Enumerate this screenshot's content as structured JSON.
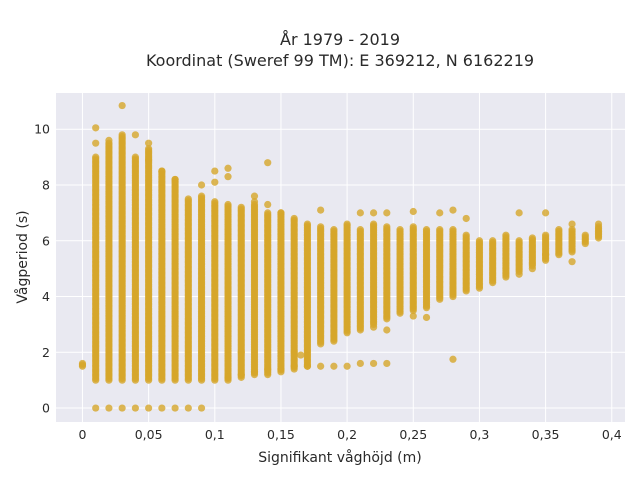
{
  "chart_data": {
    "type": "scatter",
    "title_lines": [
      "År 1979 - 2019",
      "Koordinat (Sweref 99 TM): E 369212, N 6162219"
    ],
    "xlabel": "Signifikant våghöjd (m)",
    "ylabel": "Vågperiod (s)",
    "xlim": [
      -0.02,
      0.41
    ],
    "ylim": [
      -0.5,
      11.3
    ],
    "x_ticks": [
      0,
      0.05,
      0.1,
      0.15,
      0.2,
      0.25,
      0.3,
      0.35,
      0.4
    ],
    "x_tick_labels": [
      "0",
      "0,05",
      "0,1",
      "0,15",
      "0,2",
      "0,25",
      "0,3",
      "0,35",
      "0,4"
    ],
    "y_ticks": [
      0,
      2,
      4,
      6,
      8,
      10
    ],
    "y_tick_labels": [
      "0",
      "2",
      "4",
      "6",
      "8",
      "10"
    ],
    "grid": true,
    "legend": "none",
    "colors": {
      "marker": "#d6a62a",
      "plot_background": "#e9e9f1",
      "grid": "#ffffff"
    },
    "columns": [
      {
        "x": 0.0,
        "y_min": 1.5,
        "y_max": 1.6
      },
      {
        "x": 0.01,
        "y_min": 1.0,
        "y_max": 9.0
      },
      {
        "x": 0.02,
        "y_min": 1.0,
        "y_max": 9.5
      },
      {
        "x": 0.03,
        "y_min": 1.0,
        "y_max": 9.8
      },
      {
        "x": 0.04,
        "y_min": 1.0,
        "y_max": 9.0
      },
      {
        "x": 0.05,
        "y_min": 1.0,
        "y_max": 9.3
      },
      {
        "x": 0.06,
        "y_min": 1.0,
        "y_max": 8.5
      },
      {
        "x": 0.07,
        "y_min": 1.0,
        "y_max": 8.2
      },
      {
        "x": 0.08,
        "y_min": 1.0,
        "y_max": 7.5
      },
      {
        "x": 0.09,
        "y_min": 1.0,
        "y_max": 7.6
      },
      {
        "x": 0.1,
        "y_min": 1.0,
        "y_max": 7.4
      },
      {
        "x": 0.11,
        "y_min": 1.0,
        "y_max": 7.3
      },
      {
        "x": 0.12,
        "y_min": 1.1,
        "y_max": 7.2
      },
      {
        "x": 0.13,
        "y_min": 1.2,
        "y_max": 7.3
      },
      {
        "x": 0.14,
        "y_min": 1.2,
        "y_max": 7.0
      },
      {
        "x": 0.15,
        "y_min": 1.3,
        "y_max": 7.0
      },
      {
        "x": 0.16,
        "y_min": 1.4,
        "y_max": 6.8
      },
      {
        "x": 0.17,
        "y_min": 1.5,
        "y_max": 6.6
      },
      {
        "x": 0.18,
        "y_min": 2.3,
        "y_max": 6.5
      },
      {
        "x": 0.19,
        "y_min": 2.4,
        "y_max": 6.4
      },
      {
        "x": 0.2,
        "y_min": 2.7,
        "y_max": 6.6
      },
      {
        "x": 0.21,
        "y_min": 2.8,
        "y_max": 6.4
      },
      {
        "x": 0.22,
        "y_min": 3.0,
        "y_max": 6.6
      },
      {
        "x": 0.23,
        "y_min": 3.2,
        "y_max": 6.5
      },
      {
        "x": 0.24,
        "y_min": 3.4,
        "y_max": 6.4
      },
      {
        "x": 0.25,
        "y_min": 3.5,
        "y_max": 6.5
      },
      {
        "x": 0.26,
        "y_min": 3.6,
        "y_max": 6.4
      },
      {
        "x": 0.27,
        "y_min": 3.9,
        "y_max": 6.4
      },
      {
        "x": 0.28,
        "y_min": 4.0,
        "y_max": 6.4
      },
      {
        "x": 0.29,
        "y_min": 4.2,
        "y_max": 6.2
      },
      {
        "x": 0.3,
        "y_min": 4.3,
        "y_max": 6.0
      },
      {
        "x": 0.31,
        "y_min": 4.5,
        "y_max": 6.0
      },
      {
        "x": 0.32,
        "y_min": 4.7,
        "y_max": 6.2
      },
      {
        "x": 0.33,
        "y_min": 4.9,
        "y_max": 6.0
      },
      {
        "x": 0.34,
        "y_min": 5.1,
        "y_max": 6.1
      },
      {
        "x": 0.35,
        "y_min": 5.3,
        "y_max": 6.2
      },
      {
        "x": 0.36,
        "y_min": 5.5,
        "y_max": 6.4
      },
      {
        "x": 0.37,
        "y_min": 5.6,
        "y_max": 6.4
      },
      {
        "x": 0.38,
        "y_min": 5.9,
        "y_max": 6.2
      },
      {
        "x": 0.39,
        "y_min": 6.1,
        "y_max": 6.5
      }
    ],
    "low_points": [
      [
        0.11,
        1.1
      ],
      [
        0.12,
        1.2
      ],
      [
        0.13,
        1.3
      ],
      [
        0.14,
        1.4
      ],
      [
        0.15,
        1.4
      ],
      [
        0.16,
        1.5
      ],
      [
        0.17,
        1.5
      ],
      [
        0.18,
        1.5
      ],
      [
        0.19,
        1.5
      ],
      [
        0.2,
        1.5
      ],
      [
        0.21,
        1.6
      ],
      [
        0.22,
        1.6
      ],
      [
        0.23,
        1.6
      ],
      [
        0.165,
        1.9
      ],
      [
        0.28,
        1.75
      ]
    ],
    "zero_points": [
      [
        0.01,
        0
      ],
      [
        0.02,
        0
      ],
      [
        0.03,
        0
      ],
      [
        0.04,
        0
      ],
      [
        0.05,
        0
      ],
      [
        0.06,
        0
      ],
      [
        0.07,
        0
      ],
      [
        0.08,
        0
      ],
      [
        0.09,
        0
      ]
    ],
    "outliers": [
      [
        0.01,
        10.05
      ],
      [
        0.01,
        9.5
      ],
      [
        0.02,
        9.6
      ],
      [
        0.03,
        10.85
      ],
      [
        0.04,
        9.8
      ],
      [
        0.05,
        9.5
      ],
      [
        0.05,
        8.9
      ],
      [
        0.06,
        8.5
      ],
      [
        0.07,
        8.2
      ],
      [
        0.09,
        8.0
      ],
      [
        0.1,
        8.5
      ],
      [
        0.1,
        8.1
      ],
      [
        0.11,
        8.6
      ],
      [
        0.11,
        8.3
      ],
      [
        0.14,
        8.8
      ],
      [
        0.13,
        7.6
      ],
      [
        0.13,
        7.4
      ],
      [
        0.14,
        7.3
      ],
      [
        0.15,
        7.0
      ],
      [
        0.18,
        7.1
      ],
      [
        0.21,
        7.0
      ],
      [
        0.22,
        7.0
      ],
      [
        0.23,
        7.0
      ],
      [
        0.25,
        7.05
      ],
      [
        0.27,
        7.0
      ],
      [
        0.28,
        7.1
      ],
      [
        0.29,
        6.8
      ],
      [
        0.33,
        7.0
      ],
      [
        0.35,
        7.0
      ],
      [
        0.37,
        6.6
      ],
      [
        0.39,
        6.6
      ],
      [
        0.37,
        5.25
      ],
      [
        0.35,
        5.5
      ],
      [
        0.34,
        5.0
      ],
      [
        0.33,
        4.8
      ],
      [
        0.26,
        3.25
      ],
      [
        0.25,
        3.3
      ],
      [
        0.23,
        2.8
      ],
      [
        0.22,
        2.9
      ],
      [
        0.12,
        2.0
      ],
      [
        0.16,
        2.0
      ]
    ]
  }
}
